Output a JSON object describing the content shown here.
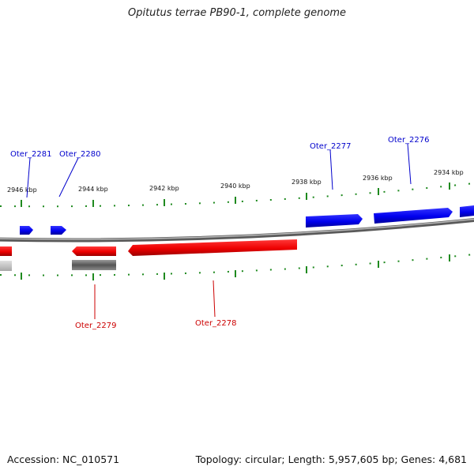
{
  "title": "Opitutus terrae PB90-1, complete genome",
  "footer": {
    "accession": "Accession: NC_010571",
    "summary": "Topology: circular; Length: 5,957,605 bp; Genes: 4,681"
  },
  "colors": {
    "forward_strand": "#0000ee",
    "reverse_strand": "#ee0000",
    "backbone": "#808080",
    "ticks": "#1f8a1f",
    "other_feature": "#606060"
  },
  "scale_labels": [
    "2946 kbp",
    "2944 kbp",
    "2942 kbp",
    "2940 kbp",
    "2938 kbp",
    "2936 kbp",
    "2934 kbp"
  ],
  "gene_labels": {
    "forward": [
      "Oter_2281",
      "Oter_2280",
      "Oter_2277",
      "Oter_2276"
    ],
    "reverse": [
      "Oter_2279",
      "Oter_2278"
    ]
  }
}
